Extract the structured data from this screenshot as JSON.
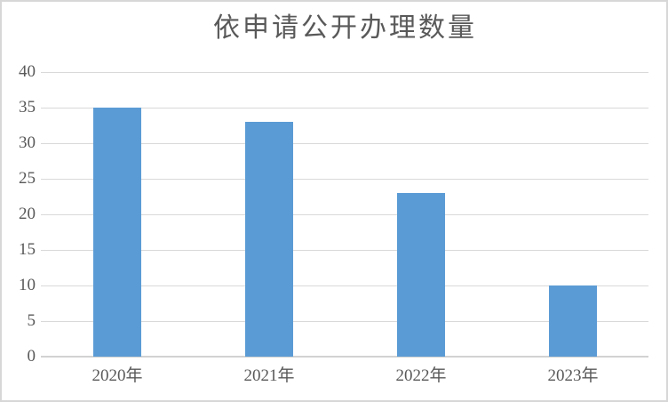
{
  "chart_data": {
    "type": "bar",
    "title": "依申请公开办理数量",
    "categories": [
      "2020年",
      "2021年",
      "2022年",
      "2023年"
    ],
    "values": [
      35,
      33,
      23,
      10
    ],
    "xlabel": "",
    "ylabel": "",
    "ylim": [
      0,
      40
    ],
    "yticks": [
      0,
      5,
      10,
      15,
      20,
      25,
      30,
      35,
      40
    ],
    "grid": true,
    "legend_position": "none",
    "colors": {
      "bar": "#5B9BD5",
      "gridline": "#D9D9D9",
      "axis_line": "#D2D2D2",
      "labels": "#595959",
      "title": "#595959",
      "chart_border": "#D7D7D7",
      "background": "#FFFFFF"
    }
  }
}
